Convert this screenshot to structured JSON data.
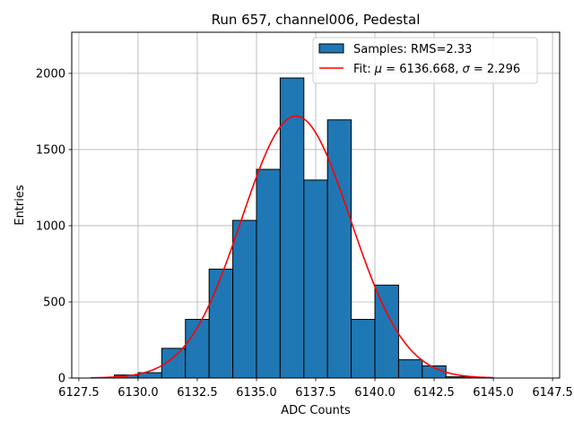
{
  "chart_data": {
    "type": "bar",
    "title": "Run 657, channel006, Pedestal",
    "xlabel": "ADC Counts",
    "ylabel": "Entries",
    "xlim": [
      6127.2,
      6147.8
    ],
    "ylim": [
      0,
      2270
    ],
    "xticks": [
      6127.5,
      6130.0,
      6132.5,
      6135.0,
      6137.5,
      6140.0,
      6142.5,
      6145.0,
      6147.5
    ],
    "xtick_labels": [
      "6127.5",
      "6130.0",
      "6132.5",
      "6135.0",
      "6137.5",
      "6140.0",
      "6142.5",
      "6145.0",
      "6147.5"
    ],
    "yticks": [
      0,
      500,
      1000,
      1500,
      2000
    ],
    "ytick_labels": [
      "0",
      "500",
      "1000",
      "1500",
      "2000"
    ],
    "grid": true,
    "bar_color": "#1f77b4",
    "bar_edge_color": "#000000",
    "fit_color": "#ff0000",
    "bins": [
      {
        "left": 6129.0,
        "right": 6130.0,
        "value": 20
      },
      {
        "left": 6130.0,
        "right": 6131.0,
        "value": 35
      },
      {
        "left": 6131.0,
        "right": 6132.0,
        "value": 195
      },
      {
        "left": 6132.0,
        "right": 6133.0,
        "value": 385
      },
      {
        "left": 6133.0,
        "right": 6134.0,
        "value": 715
      },
      {
        "left": 6134.0,
        "right": 6135.0,
        "value": 1035
      },
      {
        "left": 6135.0,
        "right": 6136.0,
        "value": 1370
      },
      {
        "left": 6136.0,
        "right": 6137.0,
        "value": 1970
      },
      {
        "left": 6137.0,
        "right": 6138.0,
        "value": 1300
      },
      {
        "left": 6138.0,
        "right": 6139.0,
        "value": 1695
      },
      {
        "left": 6139.0,
        "right": 6140.0,
        "value": 385
      },
      {
        "left": 6140.0,
        "right": 6141.0,
        "value": 610
      },
      {
        "left": 6141.0,
        "right": 6142.0,
        "value": 120
      },
      {
        "left": 6142.0,
        "right": 6143.0,
        "value": 80
      },
      {
        "left": 6143.0,
        "right": 6144.0,
        "value": 8
      },
      {
        "left": 6144.0,
        "right": 6145.0,
        "value": 2
      }
    ],
    "fit": {
      "mu": 6136.668,
      "sigma": 2.296,
      "amplitude": 1720,
      "x_range": [
        6128.0,
        6145.0
      ]
    },
    "legend": {
      "position": "top-right",
      "entries": [
        {
          "kind": "patch",
          "label": "Samples: RMS=2.33"
        },
        {
          "kind": "line",
          "label_prefix": "Fit: ",
          "mu_symbol": "μ",
          "mu_text": " = 6136.668, ",
          "sigma_symbol": "σ",
          "sigma_text": " = 2.296"
        }
      ]
    }
  }
}
